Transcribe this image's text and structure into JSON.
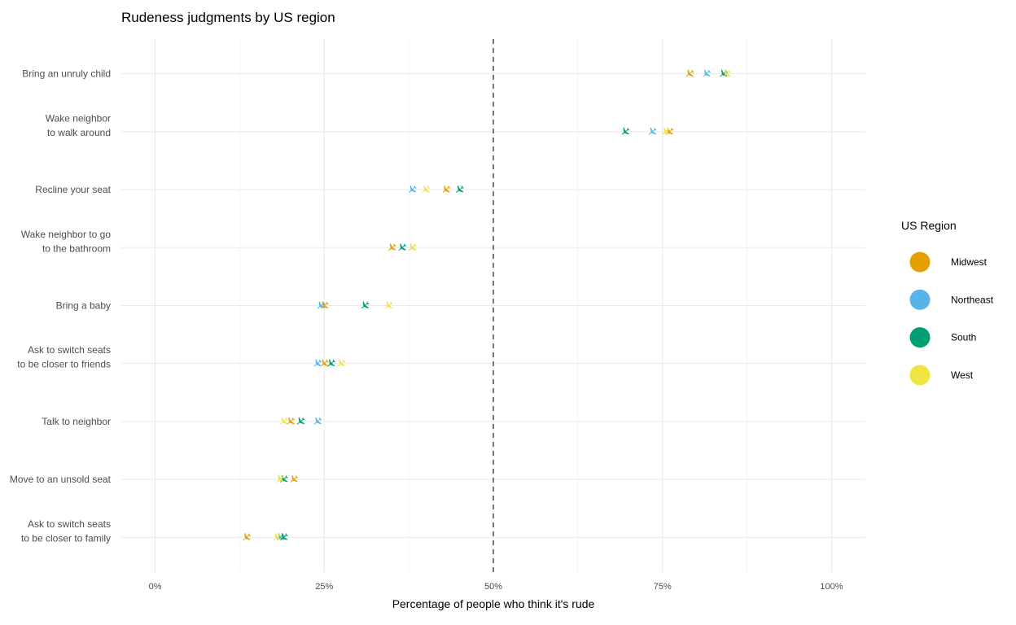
{
  "chart_data": {
    "type": "scatter",
    "title": "Rudeness judgments by US region",
    "xlabel": "Percentage of people who think it's rude",
    "ylabel": "",
    "xlim": [
      -0.05,
      1.05
    ],
    "x_ticks": [
      0,
      0.25,
      0.5,
      0.75,
      1.0
    ],
    "x_tick_labels": [
      "0%",
      "25%",
      "50%",
      "75%",
      "100%"
    ],
    "reference_line": {
      "x": 0.5,
      "style": "dashed"
    },
    "marker": "airplane-icon",
    "grid": true,
    "categories": [
      [
        "Bring an unruly child"
      ],
      [
        "Wake neighbor",
        "to walk around"
      ],
      [
        "Recline your seat"
      ],
      [
        "Wake neighbor to go",
        "to the bathroom"
      ],
      [
        "Bring a baby"
      ],
      [
        "Ask to switch seats",
        "to be closer to friends"
      ],
      [
        "Talk to neighbor"
      ],
      [
        "Move to an unsold seat"
      ],
      [
        "Ask to switch seats",
        "to be closer to family"
      ]
    ],
    "legend": {
      "title": "US Region",
      "position": "right"
    },
    "series": [
      {
        "name": "Midwest",
        "color": "#E69F00",
        "values": [
          0.79,
          0.76,
          0.43,
          0.35,
          0.25,
          0.25,
          0.2,
          0.205,
          0.135
        ]
      },
      {
        "name": "Northeast",
        "color": "#56B4E9",
        "values": [
          0.815,
          0.735,
          0.38,
          0.38,
          0.245,
          0.24,
          0.24,
          0.185,
          0.185
        ]
      },
      {
        "name": "South",
        "color": "#009E73",
        "values": [
          0.84,
          0.695,
          0.45,
          0.365,
          0.31,
          0.26,
          0.215,
          0.19,
          0.19
        ]
      },
      {
        "name": "West",
        "color": "#F0E442",
        "values": [
          0.845,
          0.755,
          0.4,
          0.38,
          0.345,
          0.275,
          0.19,
          0.185,
          0.18
        ]
      }
    ]
  }
}
